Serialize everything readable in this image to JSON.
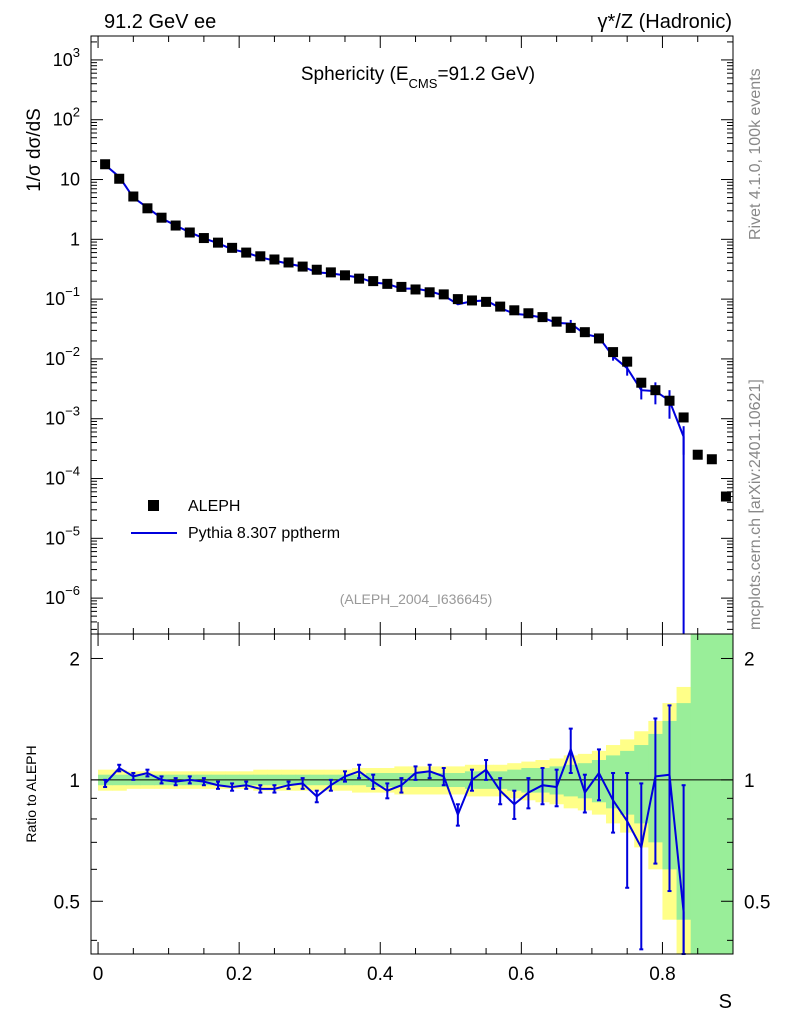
{
  "header": {
    "left": "91.2 GeV ee",
    "right": "γ*/Z (Hadronic)"
  },
  "title": {
    "main": "Sphericity (E",
    "sub": "CMS",
    "tail": "=91.2 GeV)"
  },
  "side_labels": {
    "rivet": "Rivet 4.1.0,  100k events",
    "mcplots": "mcplots.cern.ch [arXiv:2401.10621]"
  },
  "analysis_tag": "(ALEPH_2004_I636645)",
  "legend": {
    "data_label": "ALEPH",
    "mc_label": "Pythia 8.307 pptherm"
  },
  "axes": {
    "ylabel_main": "1/σ  dσ/dS",
    "ylabel_ratio": "Ratio to ALEPH",
    "xlabel": "S",
    "y_main_ticks": [
      "10^-6",
      "10^-5",
      "10^-4",
      "10^-3",
      "10^-2",
      "10^-1",
      "1",
      "10",
      "10^2",
      "10^3"
    ],
    "y_ratio_ticks": [
      "0.5",
      "1",
      "2"
    ],
    "x_ticks": [
      "0",
      "0.2",
      "0.4",
      "0.6",
      "0.8"
    ]
  },
  "colors": {
    "mc": "#0000dd",
    "data": "#000000",
    "band_outer": "#ffff88",
    "band_inner": "#99ee99"
  },
  "chart_data": {
    "type": "scatter",
    "x_range": [
      -0.01,
      0.9
    ],
    "y_main_range_log10": [
      -6.6,
      3.4
    ],
    "y_ratio_range": [
      0.37,
      2.3
    ],
    "x": [
      0.01,
      0.03,
      0.05,
      0.07,
      0.09,
      0.11,
      0.13,
      0.15,
      0.17,
      0.19,
      0.21,
      0.23,
      0.25,
      0.27,
      0.29,
      0.31,
      0.33,
      0.35,
      0.37,
      0.39,
      0.41,
      0.43,
      0.45,
      0.47,
      0.49,
      0.51,
      0.53,
      0.55,
      0.57,
      0.59,
      0.61,
      0.63,
      0.65,
      0.67,
      0.69,
      0.71,
      0.73,
      0.75,
      0.77,
      0.79,
      0.81,
      0.83,
      0.85,
      0.87,
      0.89
    ],
    "data_values": [
      18,
      10.3,
      5.2,
      3.3,
      2.3,
      1.7,
      1.3,
      1.05,
      0.88,
      0.72,
      0.6,
      0.52,
      0.46,
      0.41,
      0.35,
      0.31,
      0.28,
      0.25,
      0.22,
      0.2,
      0.18,
      0.16,
      0.145,
      0.13,
      0.12,
      0.1,
      0.095,
      0.09,
      0.075,
      0.065,
      0.058,
      0.05,
      0.042,
      0.033,
      0.028,
      0.022,
      0.013,
      0.009,
      0.004,
      0.003,
      0.002,
      0.00105,
      0.00025,
      0.00021,
      5e-05
    ],
    "mc_values": [
      17.6,
      11.1,
      5.0,
      3.4,
      2.25,
      1.7,
      1.31,
      1.04,
      0.86,
      0.68,
      0.6,
      0.5,
      0.44,
      0.39,
      0.35,
      0.28,
      0.27,
      0.25,
      0.23,
      0.19,
      0.18,
      0.15,
      0.15,
      0.136,
      0.115,
      0.082,
      0.092,
      0.095,
      0.071,
      0.057,
      0.054,
      0.049,
      0.04,
      0.039,
      0.026,
      0.023,
      0.011,
      0.007,
      0.003,
      0.0029,
      0.002,
      0.0005
    ],
    "ratio": [
      0.98,
      1.07,
      1.02,
      1.04,
      1.0,
      0.99,
      1.0,
      0.99,
      0.97,
      0.96,
      0.97,
      0.95,
      0.95,
      0.97,
      0.98,
      0.91,
      0.97,
      1.02,
      1.05,
      0.99,
      0.94,
      0.97,
      1.04,
      1.05,
      1.02,
      0.82,
      1.0,
      1.06,
      0.94,
      0.87,
      0.93,
      0.97,
      0.96,
      1.19,
      0.93,
      1.04,
      0.89,
      0.79,
      0.68,
      1.02,
      1.03,
      0.47
    ],
    "ratio_err": [
      0.02,
      0.02,
      0.02,
      0.02,
      0.02,
      0.02,
      0.02,
      0.02,
      0.02,
      0.02,
      0.02,
      0.02,
      0.02,
      0.02,
      0.03,
      0.03,
      0.03,
      0.03,
      0.04,
      0.04,
      0.04,
      0.04,
      0.04,
      0.04,
      0.05,
      0.05,
      0.06,
      0.06,
      0.07,
      0.07,
      0.08,
      0.1,
      0.1,
      0.15,
      0.1,
      0.15,
      0.15,
      0.25,
      0.3,
      0.4,
      0.5,
      0.5
    ],
    "band_outer": [
      0.06,
      0.06,
      0.05,
      0.05,
      0.05,
      0.05,
      0.05,
      0.05,
      0.05,
      0.05,
      0.05,
      0.06,
      0.06,
      0.06,
      0.06,
      0.06,
      0.06,
      0.06,
      0.07,
      0.07,
      0.07,
      0.08,
      0.08,
      0.08,
      0.08,
      0.08,
      0.09,
      0.09,
      0.09,
      0.1,
      0.11,
      0.12,
      0.13,
      0.15,
      0.16,
      0.18,
      0.22,
      0.26,
      0.32,
      0.4,
      0.55,
      0.7,
      1.5,
      1.5,
      1.5
    ],
    "band_inner": [
      0.03,
      0.03,
      0.03,
      0.03,
      0.03,
      0.03,
      0.03,
      0.03,
      0.03,
      0.03,
      0.03,
      0.03,
      0.03,
      0.03,
      0.03,
      0.03,
      0.03,
      0.03,
      0.03,
      0.04,
      0.04,
      0.04,
      0.04,
      0.04,
      0.04,
      0.04,
      0.05,
      0.05,
      0.05,
      0.06,
      0.07,
      0.07,
      0.08,
      0.09,
      0.1,
      0.12,
      0.15,
      0.18,
      0.22,
      0.3,
      0.4,
      0.55,
      1.5,
      1.5,
      1.5
    ]
  }
}
